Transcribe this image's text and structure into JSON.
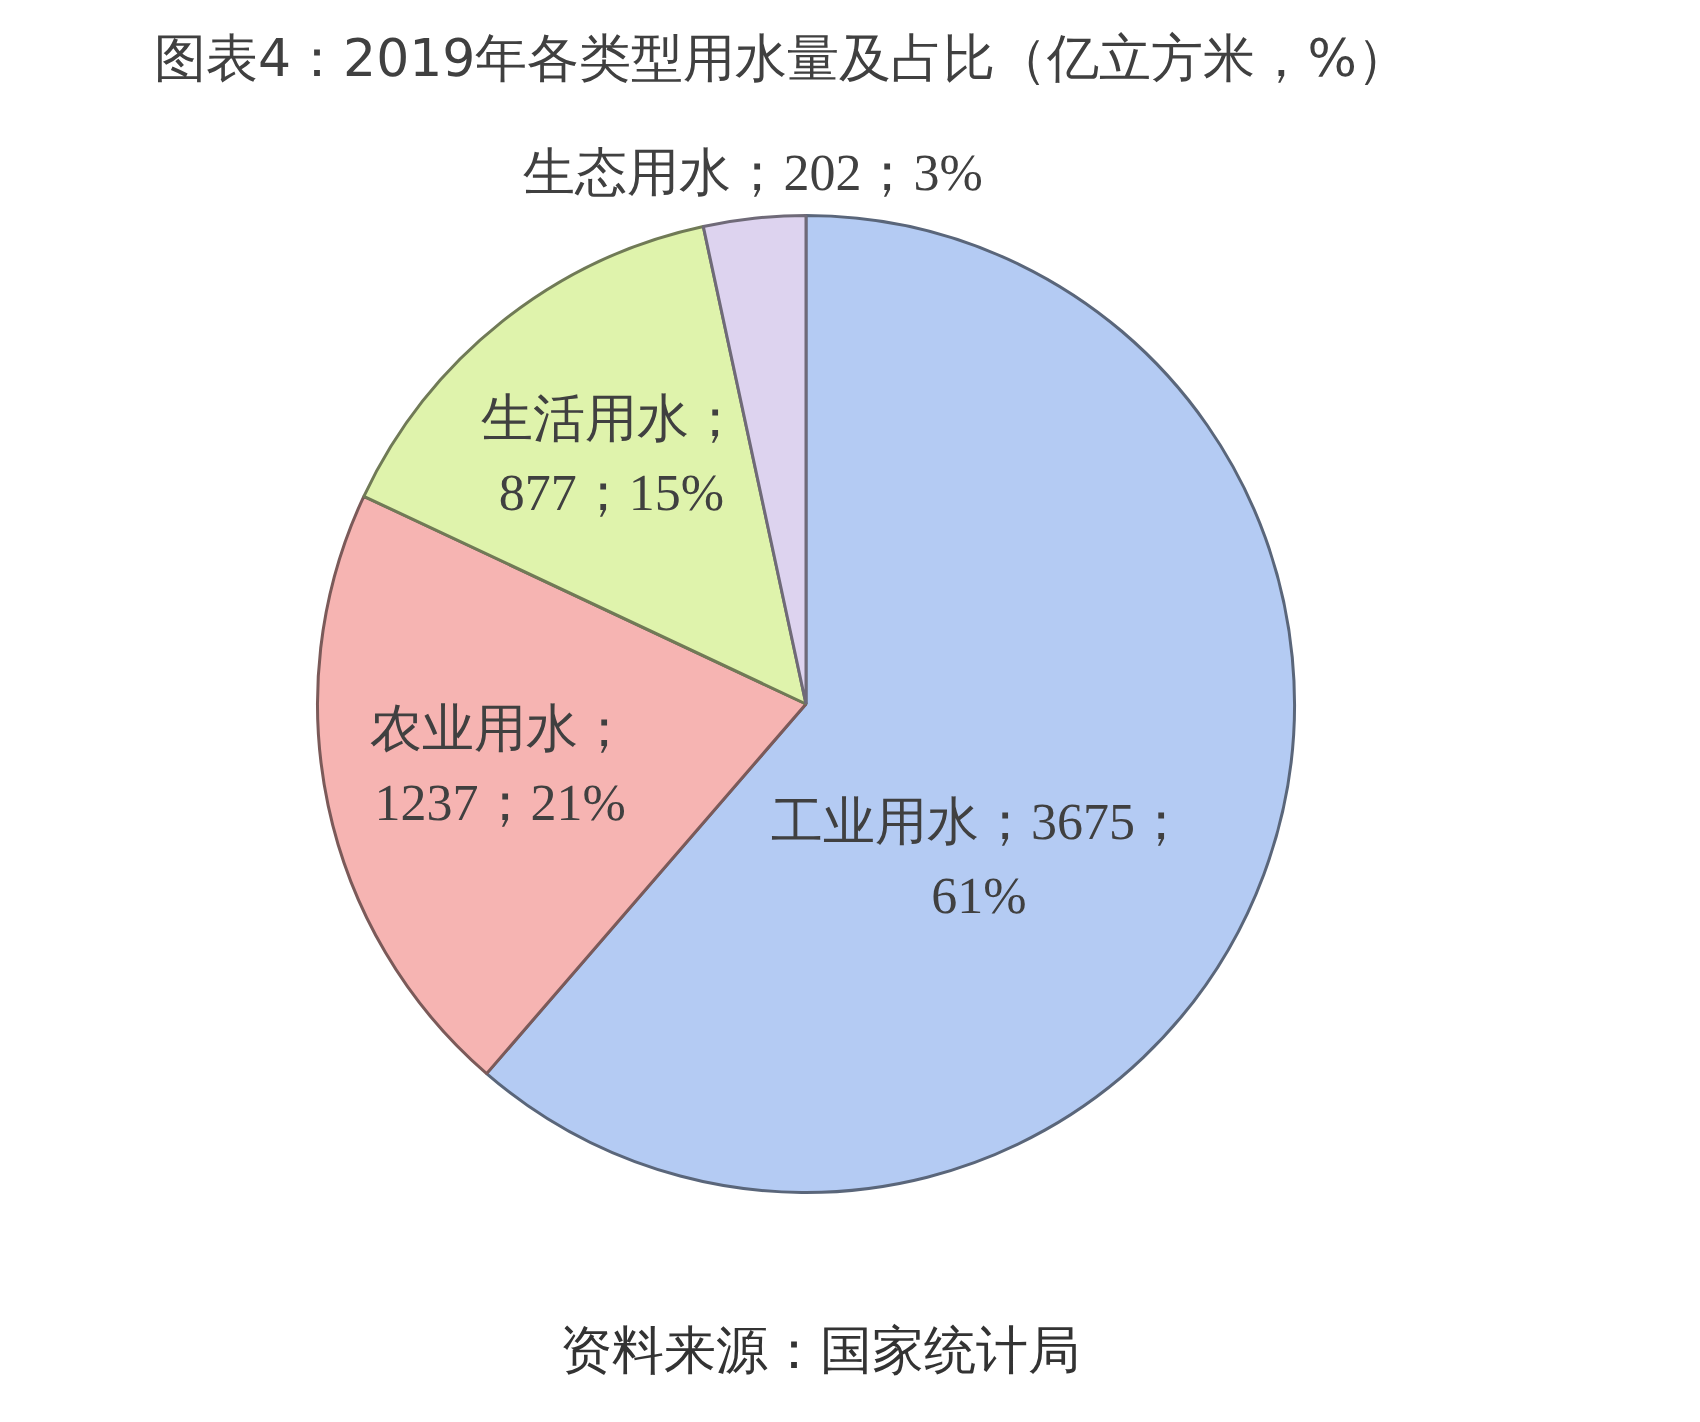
{
  "chart_data": {
    "type": "pie",
    "title": "图表4：2019年各类型用水量及占比（亿立方米，%）",
    "categories": [
      null,
      null,
      null,
      null
    ],
    "values": [
      3675,
      1237,
      877,
      202
    ],
    "colors": [
      "#b4cbf3",
      "#f6b4b2",
      "#dff3ac",
      "#ddd3ef"
    ],
    "value_labels": [
      "工业用水；3675；61%",
      "农业用水；1237；21%",
      "生活用水；877；15%",
      "生态用水；202；3%"
    ],
    "annotations": [
      "资料来源：国家统计局"
    ]
  }
}
